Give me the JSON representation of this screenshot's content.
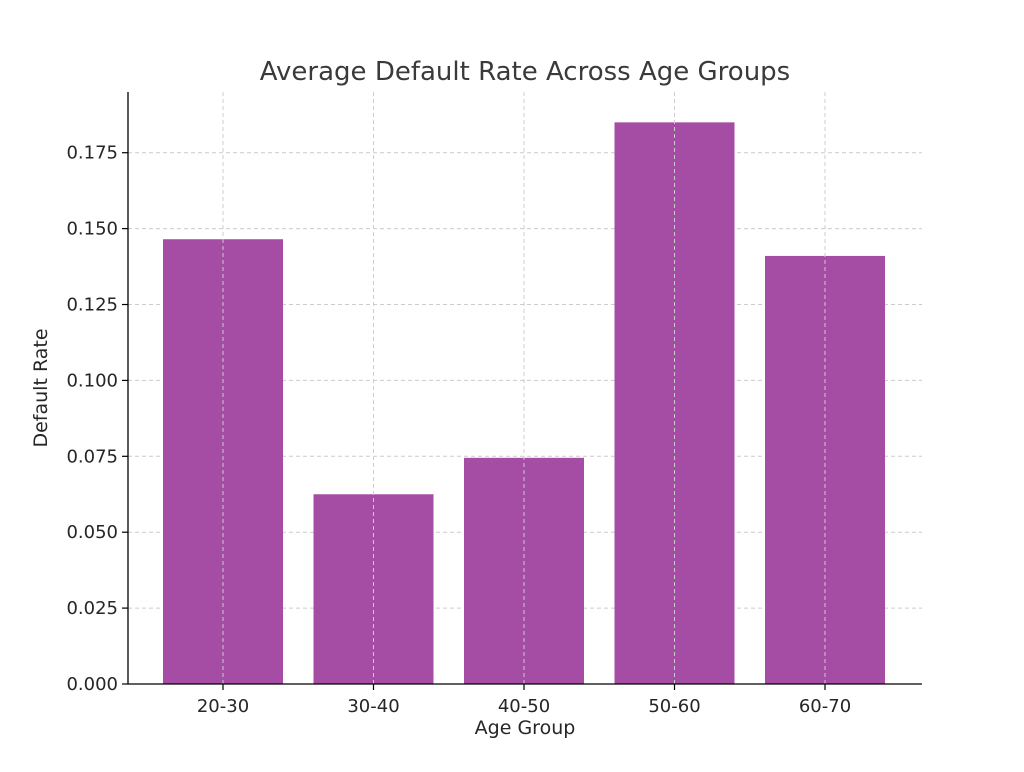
{
  "chart_data": {
    "type": "bar",
    "title": "Average Default Rate Across Age Groups",
    "xlabel": "Age Group",
    "ylabel": "Default Rate",
    "categories": [
      "20-30",
      "30-40",
      "40-50",
      "50-60",
      "60-70"
    ],
    "values": [
      0.1465,
      0.0625,
      0.0745,
      0.185,
      0.141
    ],
    "ylim": [
      0,
      0.195
    ],
    "yticks": [
      0.0,
      0.025,
      0.05,
      0.075,
      0.1,
      0.125,
      0.15,
      0.175
    ],
    "ytick_labels": [
      "0.000",
      "0.025",
      "0.050",
      "0.075",
      "0.100",
      "0.125",
      "0.150",
      "0.175"
    ],
    "bar_color": "#a54ca5",
    "grid": true
  }
}
